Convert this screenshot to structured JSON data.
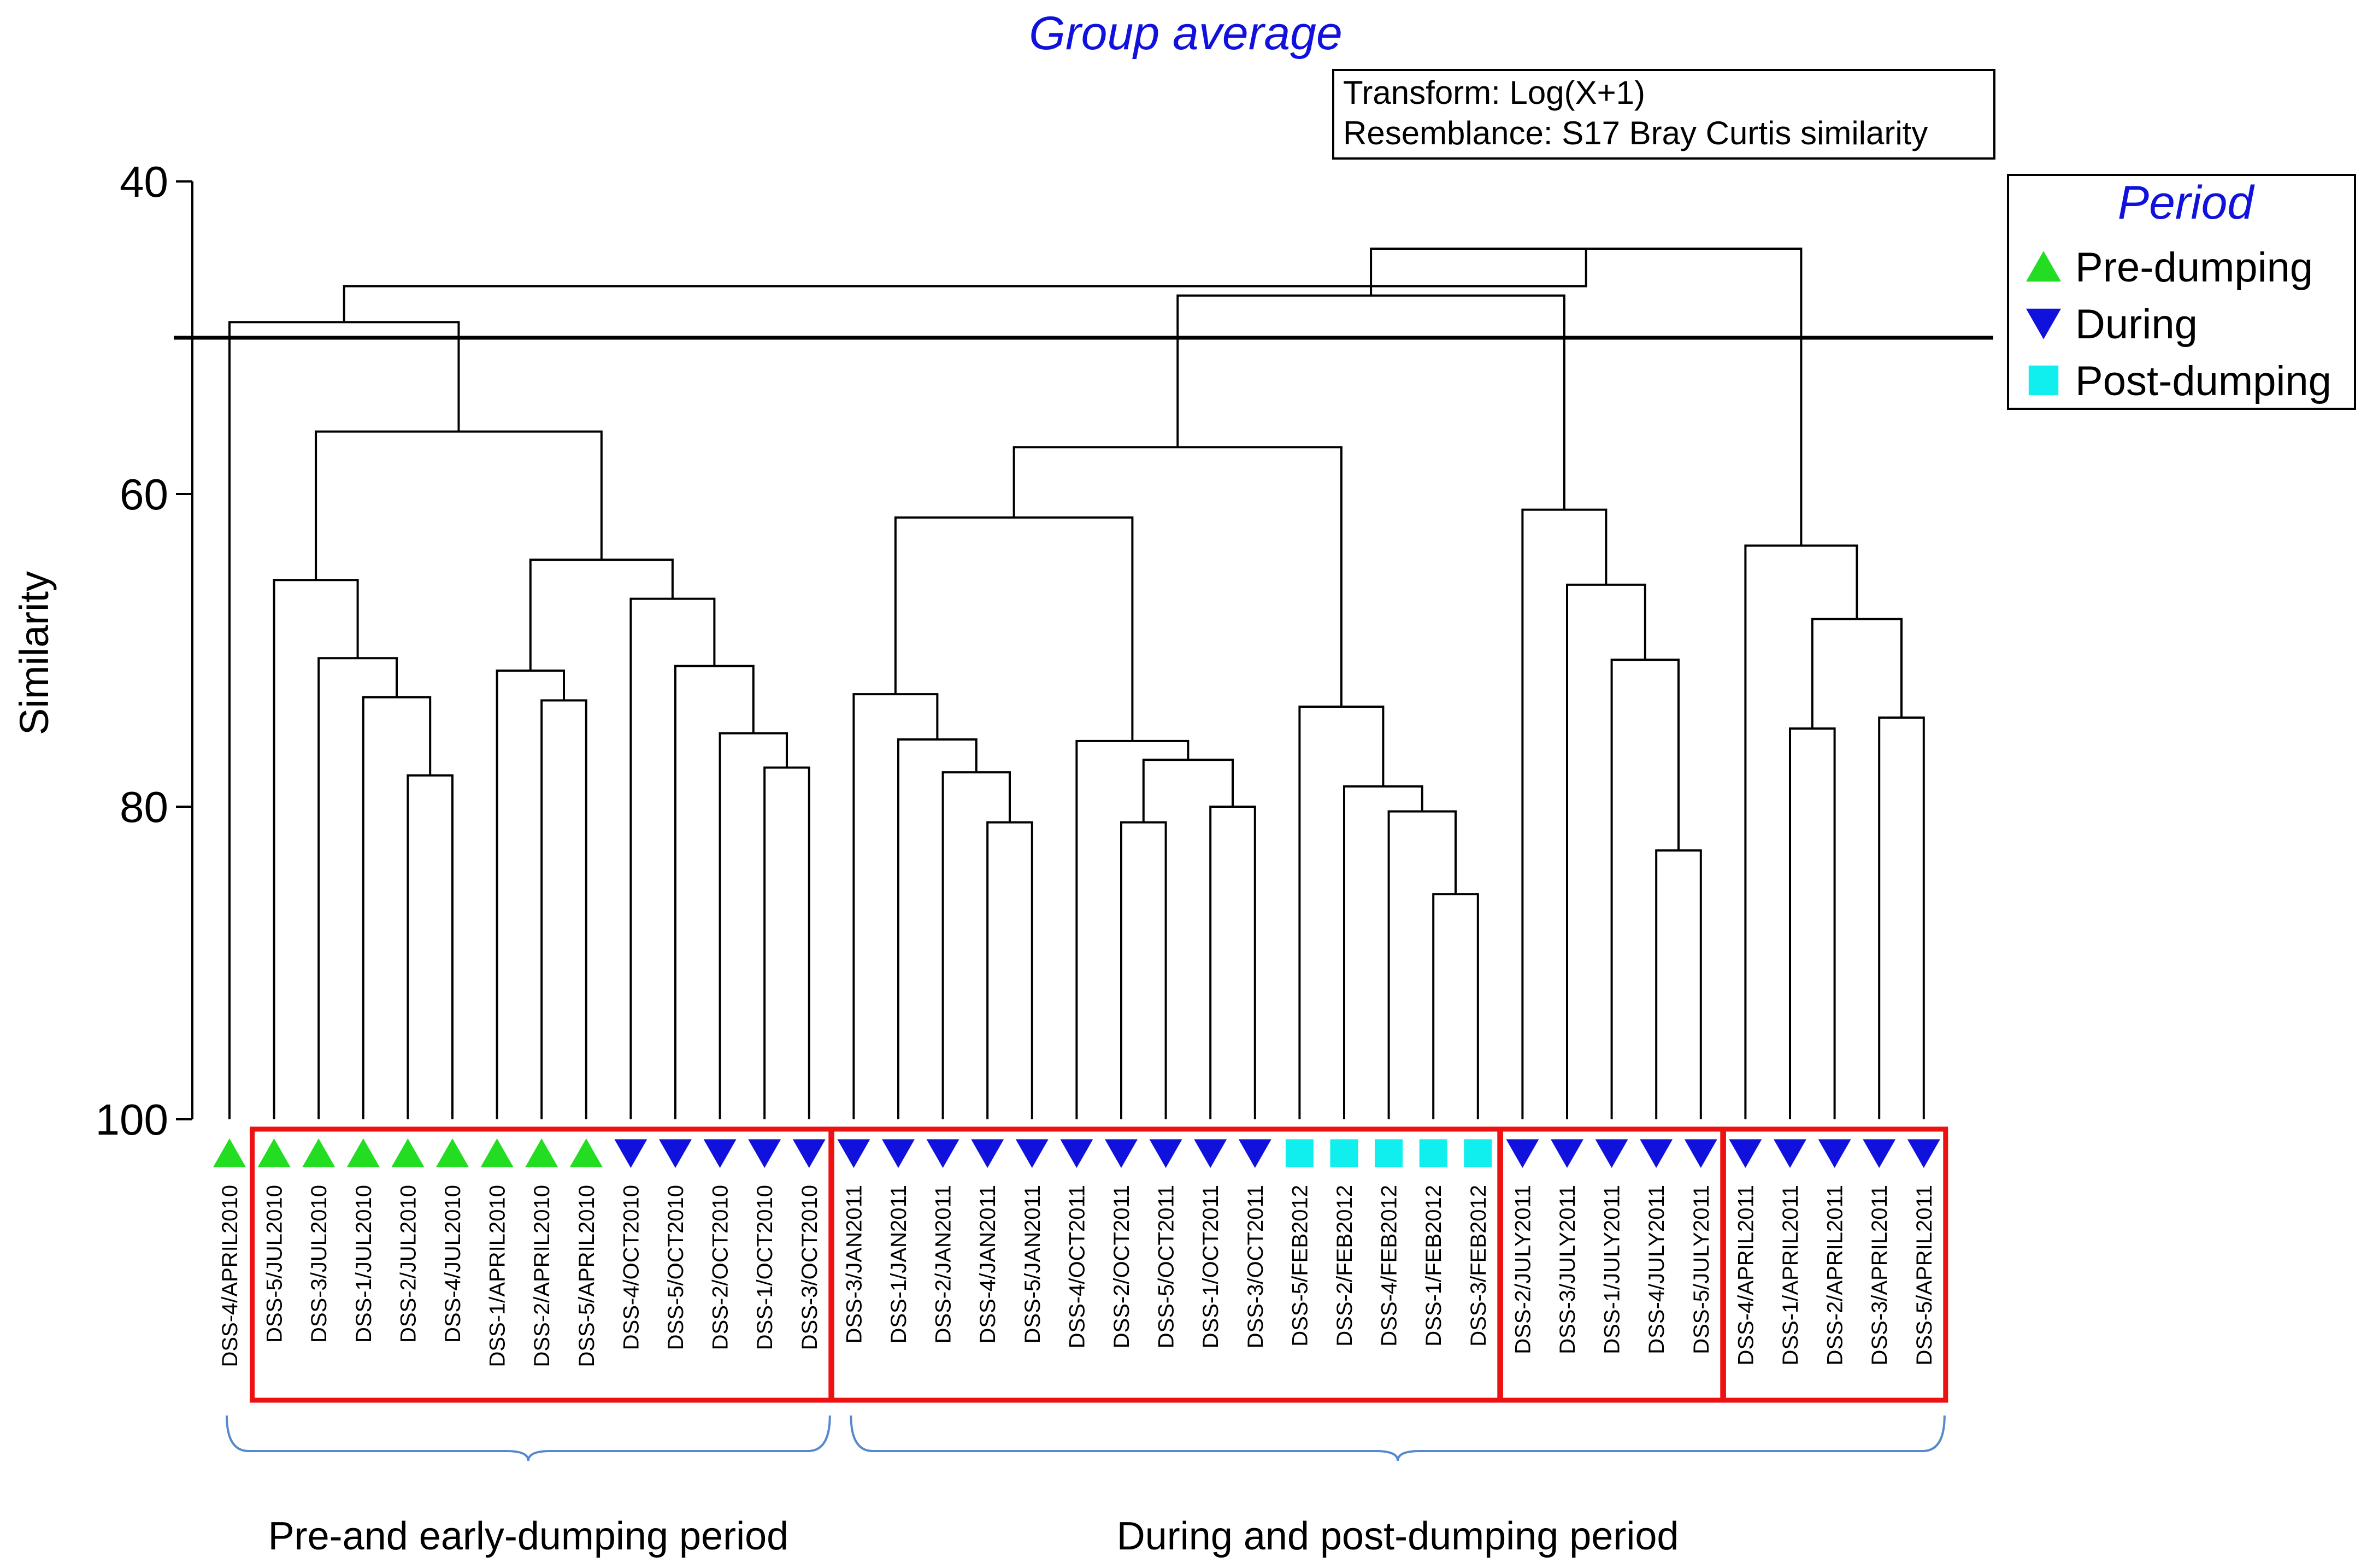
{
  "colors": {
    "title": "#1111dd",
    "pre_dumping": "#22dd22",
    "during": "#1111dd",
    "post_dumping": "#11eeee",
    "group_box": "#ee1111",
    "bracket": "#5588cc"
  },
  "chart_data": {
    "type": "dendrogram",
    "title": "Group average",
    "info_box": [
      "Transform: Log(X+1)",
      "Resemblance: S17 Bray Curtis similarity"
    ],
    "ylabel": "Similarity",
    "ylim": [
      40,
      100
    ],
    "yticks": [
      40,
      60,
      80,
      100
    ],
    "cut_line": 50,
    "legend": {
      "title": "Period",
      "entries": [
        {
          "label": "Pre-dumping",
          "marker": "triangle-up",
          "color": "#22dd22"
        },
        {
          "label": "During",
          "marker": "triangle-down",
          "color": "#1111dd"
        },
        {
          "label": "Post-dumping",
          "marker": "square",
          "color": "#11eeee"
        }
      ]
    },
    "leaves": [
      {
        "label": "DSS-4/APRIL2010",
        "period": "Pre-dumping"
      },
      {
        "label": "DSS-5/JUL2010",
        "period": "Pre-dumping"
      },
      {
        "label": "DSS-3/JUL2010",
        "period": "Pre-dumping"
      },
      {
        "label": "DSS-1/JUL2010",
        "period": "Pre-dumping"
      },
      {
        "label": "DSS-2/JUL2010",
        "period": "Pre-dumping"
      },
      {
        "label": "DSS-4/JUL2010",
        "period": "Pre-dumping"
      },
      {
        "label": "DSS-1/APRIL2010",
        "period": "Pre-dumping"
      },
      {
        "label": "DSS-2/APRIL2010",
        "period": "Pre-dumping"
      },
      {
        "label": "DSS-5/APRIL2010",
        "period": "Pre-dumping"
      },
      {
        "label": "DSS-4/OCT2010",
        "period": "During"
      },
      {
        "label": "DSS-5/OCT2010",
        "period": "During"
      },
      {
        "label": "DSS-2/OCT2010",
        "period": "During"
      },
      {
        "label": "DSS-1/OCT2010",
        "period": "During"
      },
      {
        "label": "DSS-3/OCT2010",
        "period": "During"
      },
      {
        "label": "DSS-3/JAN2011",
        "period": "During"
      },
      {
        "label": "DSS-1/JAN2011",
        "period": "During"
      },
      {
        "label": "DSS-2/JAN2011",
        "period": "During"
      },
      {
        "label": "DSS-4/JAN2011",
        "period": "During"
      },
      {
        "label": "DSS-5/JAN2011",
        "period": "During"
      },
      {
        "label": "DSS-4/OCT2011",
        "period": "During"
      },
      {
        "label": "DSS-2/OCT2011",
        "period": "During"
      },
      {
        "label": "DSS-5/OCT2011",
        "period": "During"
      },
      {
        "label": "DSS-1/OCT2011",
        "period": "During"
      },
      {
        "label": "DSS-3/OCT2011",
        "period": "During"
      },
      {
        "label": "DSS-5/FEB2012",
        "period": "Post-dumping"
      },
      {
        "label": "DSS-2/FEB2012",
        "period": "Post-dumping"
      },
      {
        "label": "DSS-4/FEB2012",
        "period": "Post-dumping"
      },
      {
        "label": "DSS-1/FEB2012",
        "period": "Post-dumping"
      },
      {
        "label": "DSS-3/FEB2012",
        "period": "Post-dumping"
      },
      {
        "label": "DSS-2/JULY2011",
        "period": "During"
      },
      {
        "label": "DSS-3/JULY2011",
        "period": "During"
      },
      {
        "label": "DSS-1/JULY2011",
        "period": "During"
      },
      {
        "label": "DSS-4/JULY2011",
        "period": "During"
      },
      {
        "label": "DSS-5/JULY2011",
        "period": "During"
      },
      {
        "label": "DSS-4/APRIL2011",
        "period": "During"
      },
      {
        "label": "DSS-1/APRIL2011",
        "period": "During"
      },
      {
        "label": "DSS-2/APRIL2011",
        "period": "During"
      },
      {
        "label": "DSS-3/APRIL2011",
        "period": "During"
      },
      {
        "label": "DSS-5/APRIL2011",
        "period": "During"
      }
    ],
    "merges": [
      {
        "a": "L4",
        "b": "L5",
        "sim": 78.0
      },
      {
        "a": "L3",
        "b": "M0",
        "sim": 73.0
      },
      {
        "a": "L2",
        "b": "M1",
        "sim": 70.5
      },
      {
        "a": "L1",
        "b": "M2",
        "sim": 65.5
      },
      {
        "a": "L7",
        "b": "L8",
        "sim": 73.2
      },
      {
        "a": "L6",
        "b": "M4",
        "sim": 71.3
      },
      {
        "a": "L12",
        "b": "L13",
        "sim": 77.5
      },
      {
        "a": "L11",
        "b": "M6",
        "sim": 75.3
      },
      {
        "a": "L10",
        "b": "M7",
        "sim": 71.0
      },
      {
        "a": "L9",
        "b": "M8",
        "sim": 66.7
      },
      {
        "a": "M5",
        "b": "M9",
        "sim": 64.2
      },
      {
        "a": "M3",
        "b": "M10",
        "sim": 56.0
      },
      {
        "a": "L0",
        "b": "M11",
        "sim": 49.0
      },
      {
        "a": "L17",
        "b": "L18",
        "sim": 81.0
      },
      {
        "a": "L16",
        "b": "M13",
        "sim": 77.8
      },
      {
        "a": "L15",
        "b": "M14",
        "sim": 75.7
      },
      {
        "a": "L14",
        "b": "M15",
        "sim": 72.8
      },
      {
        "a": "L20",
        "b": "L21",
        "sim": 81.0
      },
      {
        "a": "L22",
        "b": "L23",
        "sim": 80.0
      },
      {
        "a": "M17",
        "b": "M18",
        "sim": 77.0
      },
      {
        "a": "L19",
        "b": "M19",
        "sim": 75.8
      },
      {
        "a": "M16",
        "b": "M20",
        "sim": 61.5
      },
      {
        "a": "L27",
        "b": "L28",
        "sim": 85.6
      },
      {
        "a": "L26",
        "b": "M22",
        "sim": 80.3
      },
      {
        "a": "L25",
        "b": "M23",
        "sim": 78.7
      },
      {
        "a": "L24",
        "b": "M24",
        "sim": 73.6
      },
      {
        "a": "M21",
        "b": "M25",
        "sim": 57.0
      },
      {
        "a": "L32",
        "b": "L33",
        "sim": 82.8
      },
      {
        "a": "L31",
        "b": "M27",
        "sim": 70.6
      },
      {
        "a": "L30",
        "b": "M28",
        "sim": 65.8
      },
      {
        "a": "L29",
        "b": "M29",
        "sim": 61.0
      },
      {
        "a": "M26",
        "b": "M30",
        "sim": 47.3
      },
      {
        "a": "L35",
        "b": "L36",
        "sim": 75.0
      },
      {
        "a": "L37",
        "b": "L38",
        "sim": 74.3
      },
      {
        "a": "M32",
        "b": "M33",
        "sim": 68.0
      },
      {
        "a": "L34",
        "b": "M34",
        "sim": 63.3
      },
      {
        "a": "M31",
        "b": "M35",
        "sim": 44.3
      },
      {
        "a": "M12",
        "b": "M36",
        "sim": 46.7
      }
    ],
    "red_boxes": [
      {
        "from_leaf": 1,
        "to_leaf": 13
      },
      {
        "from_leaf": 14,
        "to_leaf": 28
      },
      {
        "from_leaf": 29,
        "to_leaf": 33
      },
      {
        "from_leaf": 34,
        "to_leaf": 38
      }
    ],
    "brackets": [
      {
        "from_leaf": 0,
        "to_leaf": 13,
        "label": "Pre-and early-dumping period"
      },
      {
        "from_leaf": 14,
        "to_leaf": 38,
        "label": "During and post-dumping period"
      }
    ]
  }
}
